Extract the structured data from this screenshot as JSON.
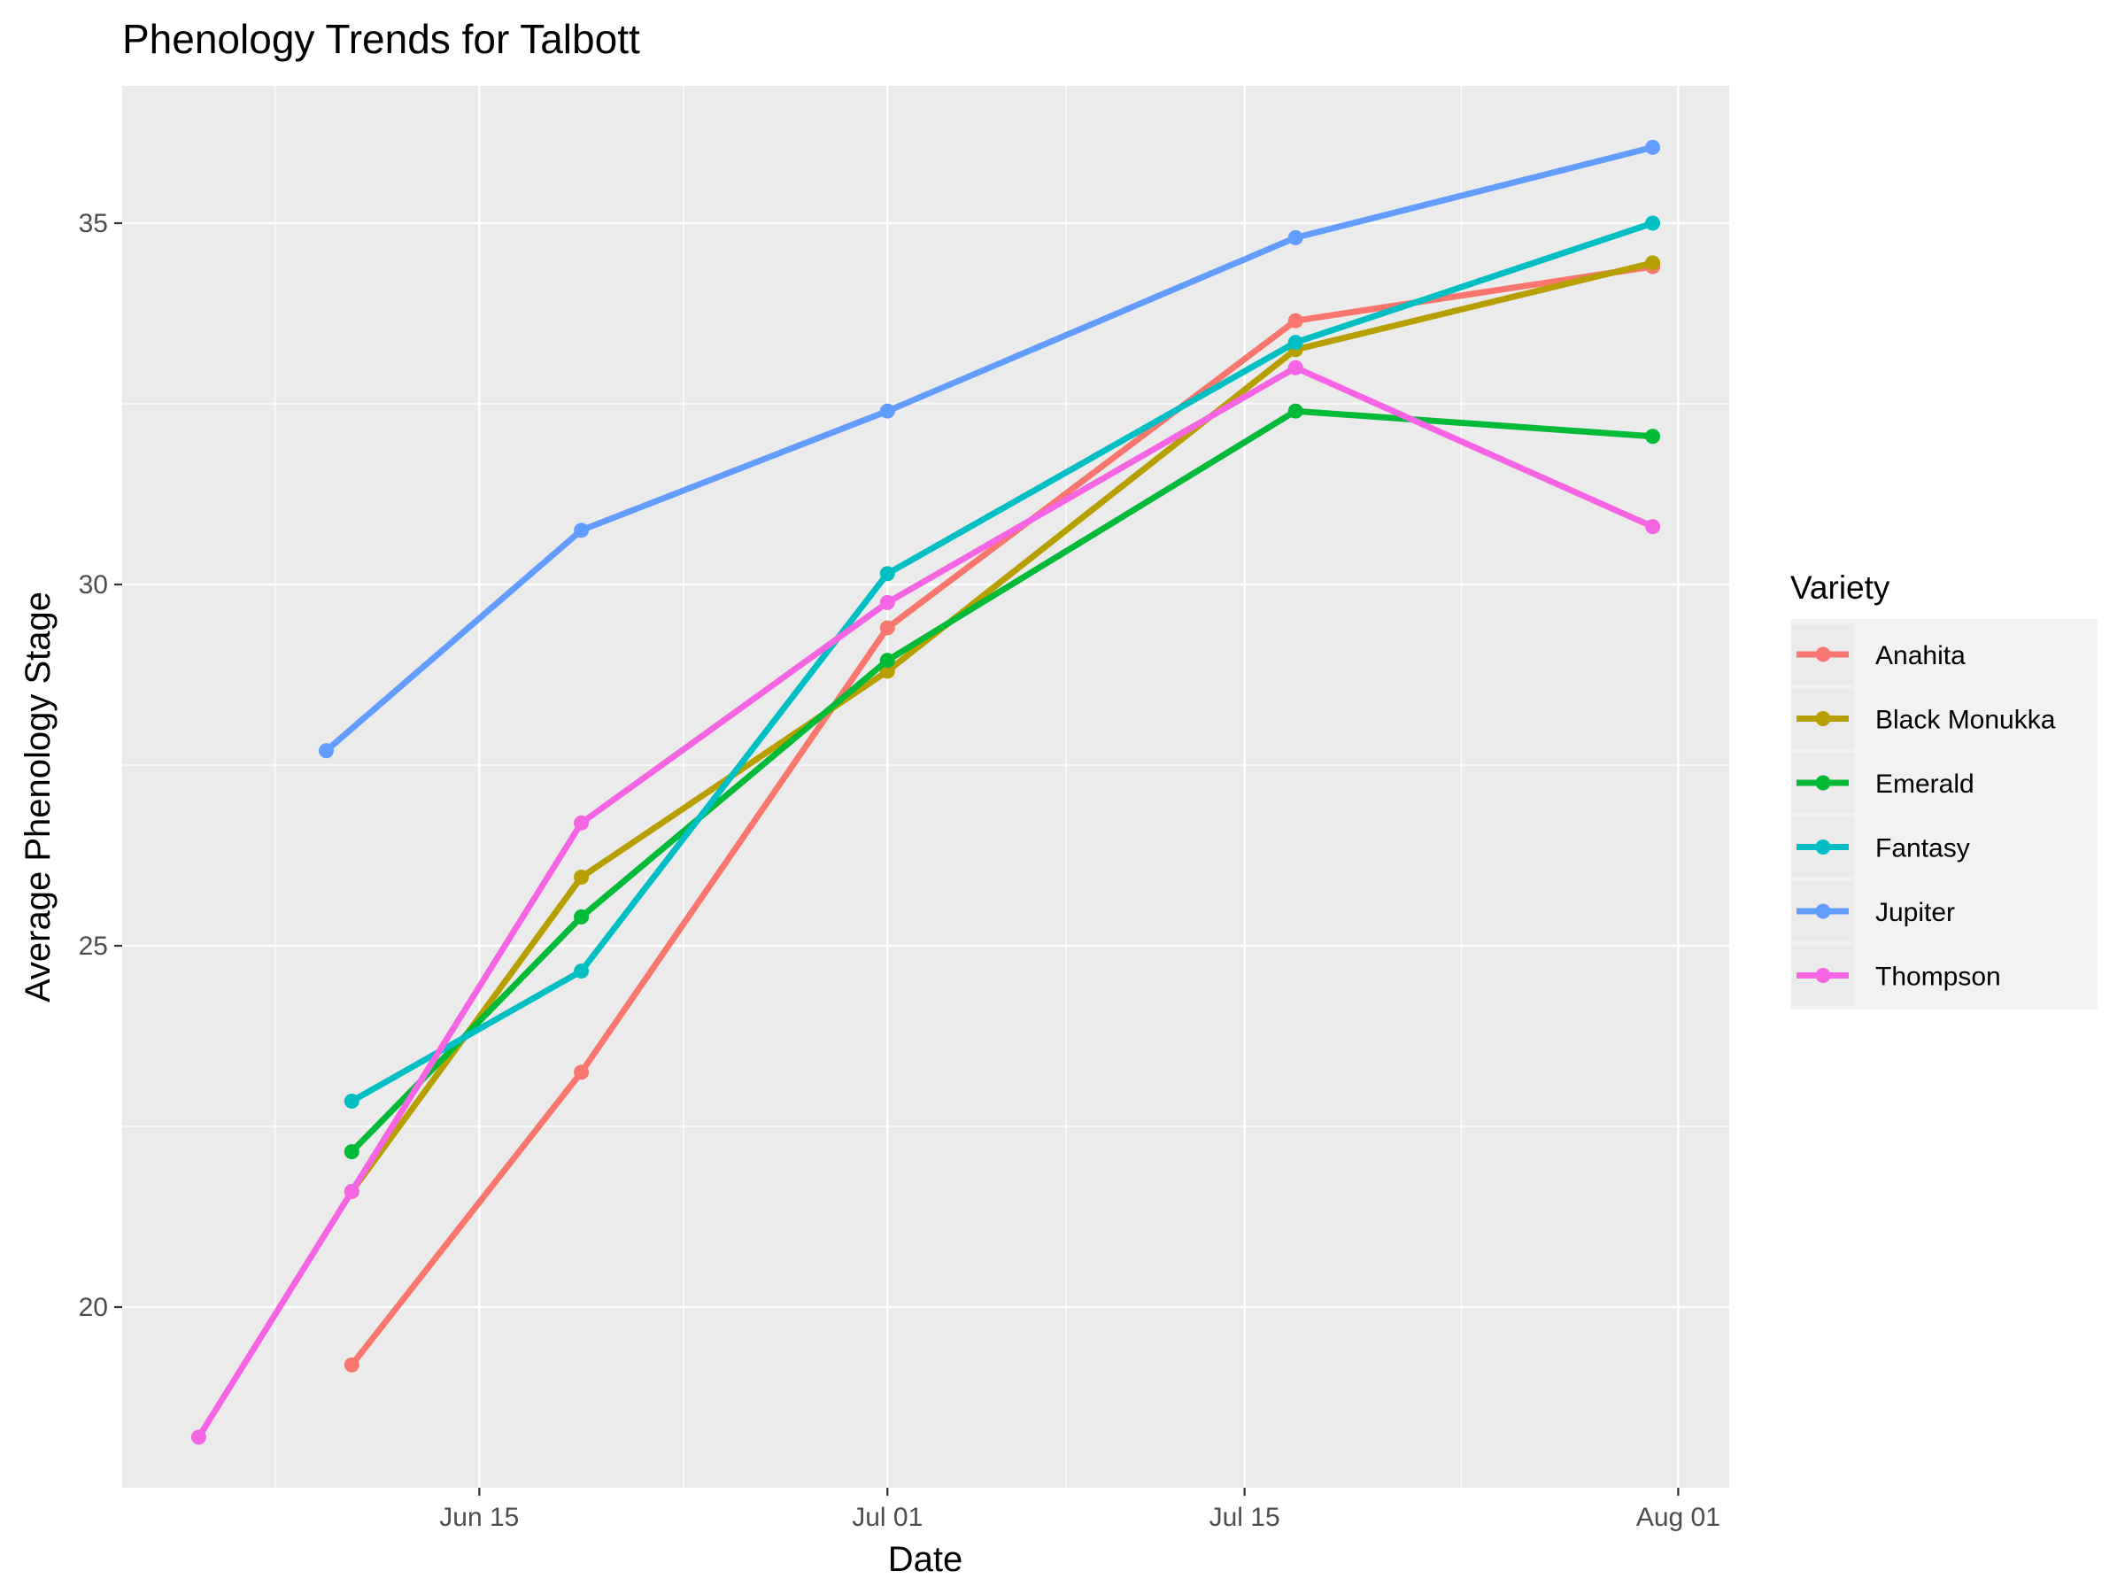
{
  "chart_data": {
    "type": "line",
    "title": "Phenology Trends for Talbott",
    "xlabel": "Date",
    "ylabel": "Average Phenology Stage",
    "x_ticks": [
      {
        "date": "2024-06-15",
        "label": "Jun 15"
      },
      {
        "date": "2024-07-01",
        "label": "Jul 01"
      },
      {
        "date": "2024-07-15",
        "label": "Jul 15"
      },
      {
        "date": "2024-08-01",
        "label": "Aug 01"
      }
    ],
    "y_ticks": [
      20,
      25,
      30,
      35
    ],
    "xlim": [
      "2024-06-01",
      "2024-08-03"
    ],
    "ylim": [
      17.5,
      36.9
    ],
    "grid": true,
    "legend": {
      "title": "Variety",
      "position": "right"
    },
    "series": [
      {
        "name": "Anahita",
        "color": "#F8766D",
        "points": [
          [
            "2024-06-10",
            19.2
          ],
          [
            "2024-06-19",
            23.25
          ],
          [
            "2024-07-01",
            29.4
          ],
          [
            "2024-07-17",
            33.65
          ],
          [
            "2024-07-31",
            34.4
          ]
        ]
      },
      {
        "name": "Black Monukka",
        "color": "#B79F00",
        "points": [
          [
            "2024-06-10",
            21.6
          ],
          [
            "2024-06-19",
            25.95
          ],
          [
            "2024-07-01",
            28.8
          ],
          [
            "2024-07-17",
            33.25
          ],
          [
            "2024-07-31",
            34.45
          ]
        ]
      },
      {
        "name": "Emerald",
        "color": "#00BA38",
        "points": [
          [
            "2024-06-10",
            22.15
          ],
          [
            "2024-06-19",
            25.4
          ],
          [
            "2024-07-01",
            28.95
          ],
          [
            "2024-07-17",
            32.4
          ],
          [
            "2024-07-31",
            32.05
          ]
        ]
      },
      {
        "name": "Fantasy",
        "color": "#00BFC4",
        "points": [
          [
            "2024-06-10",
            22.85
          ],
          [
            "2024-06-19",
            24.65
          ],
          [
            "2024-07-01",
            30.15
          ],
          [
            "2024-07-17",
            33.35
          ],
          [
            "2024-07-31",
            35.0
          ]
        ]
      },
      {
        "name": "Jupiter",
        "color": "#619CFF",
        "points": [
          [
            "2024-06-09",
            27.7
          ],
          [
            "2024-06-19",
            30.75
          ],
          [
            "2024-07-01",
            32.4
          ],
          [
            "2024-07-17",
            34.8
          ],
          [
            "2024-07-31",
            36.05
          ]
        ]
      },
      {
        "name": "Thompson",
        "color": "#F564E3",
        "points": [
          [
            "2024-06-04",
            18.2
          ],
          [
            "2024-06-10",
            21.6
          ],
          [
            "2024-06-19",
            26.7
          ],
          [
            "2024-07-01",
            29.75
          ],
          [
            "2024-07-17",
            33.0
          ],
          [
            "2024-07-31",
            30.8
          ]
        ]
      }
    ]
  }
}
